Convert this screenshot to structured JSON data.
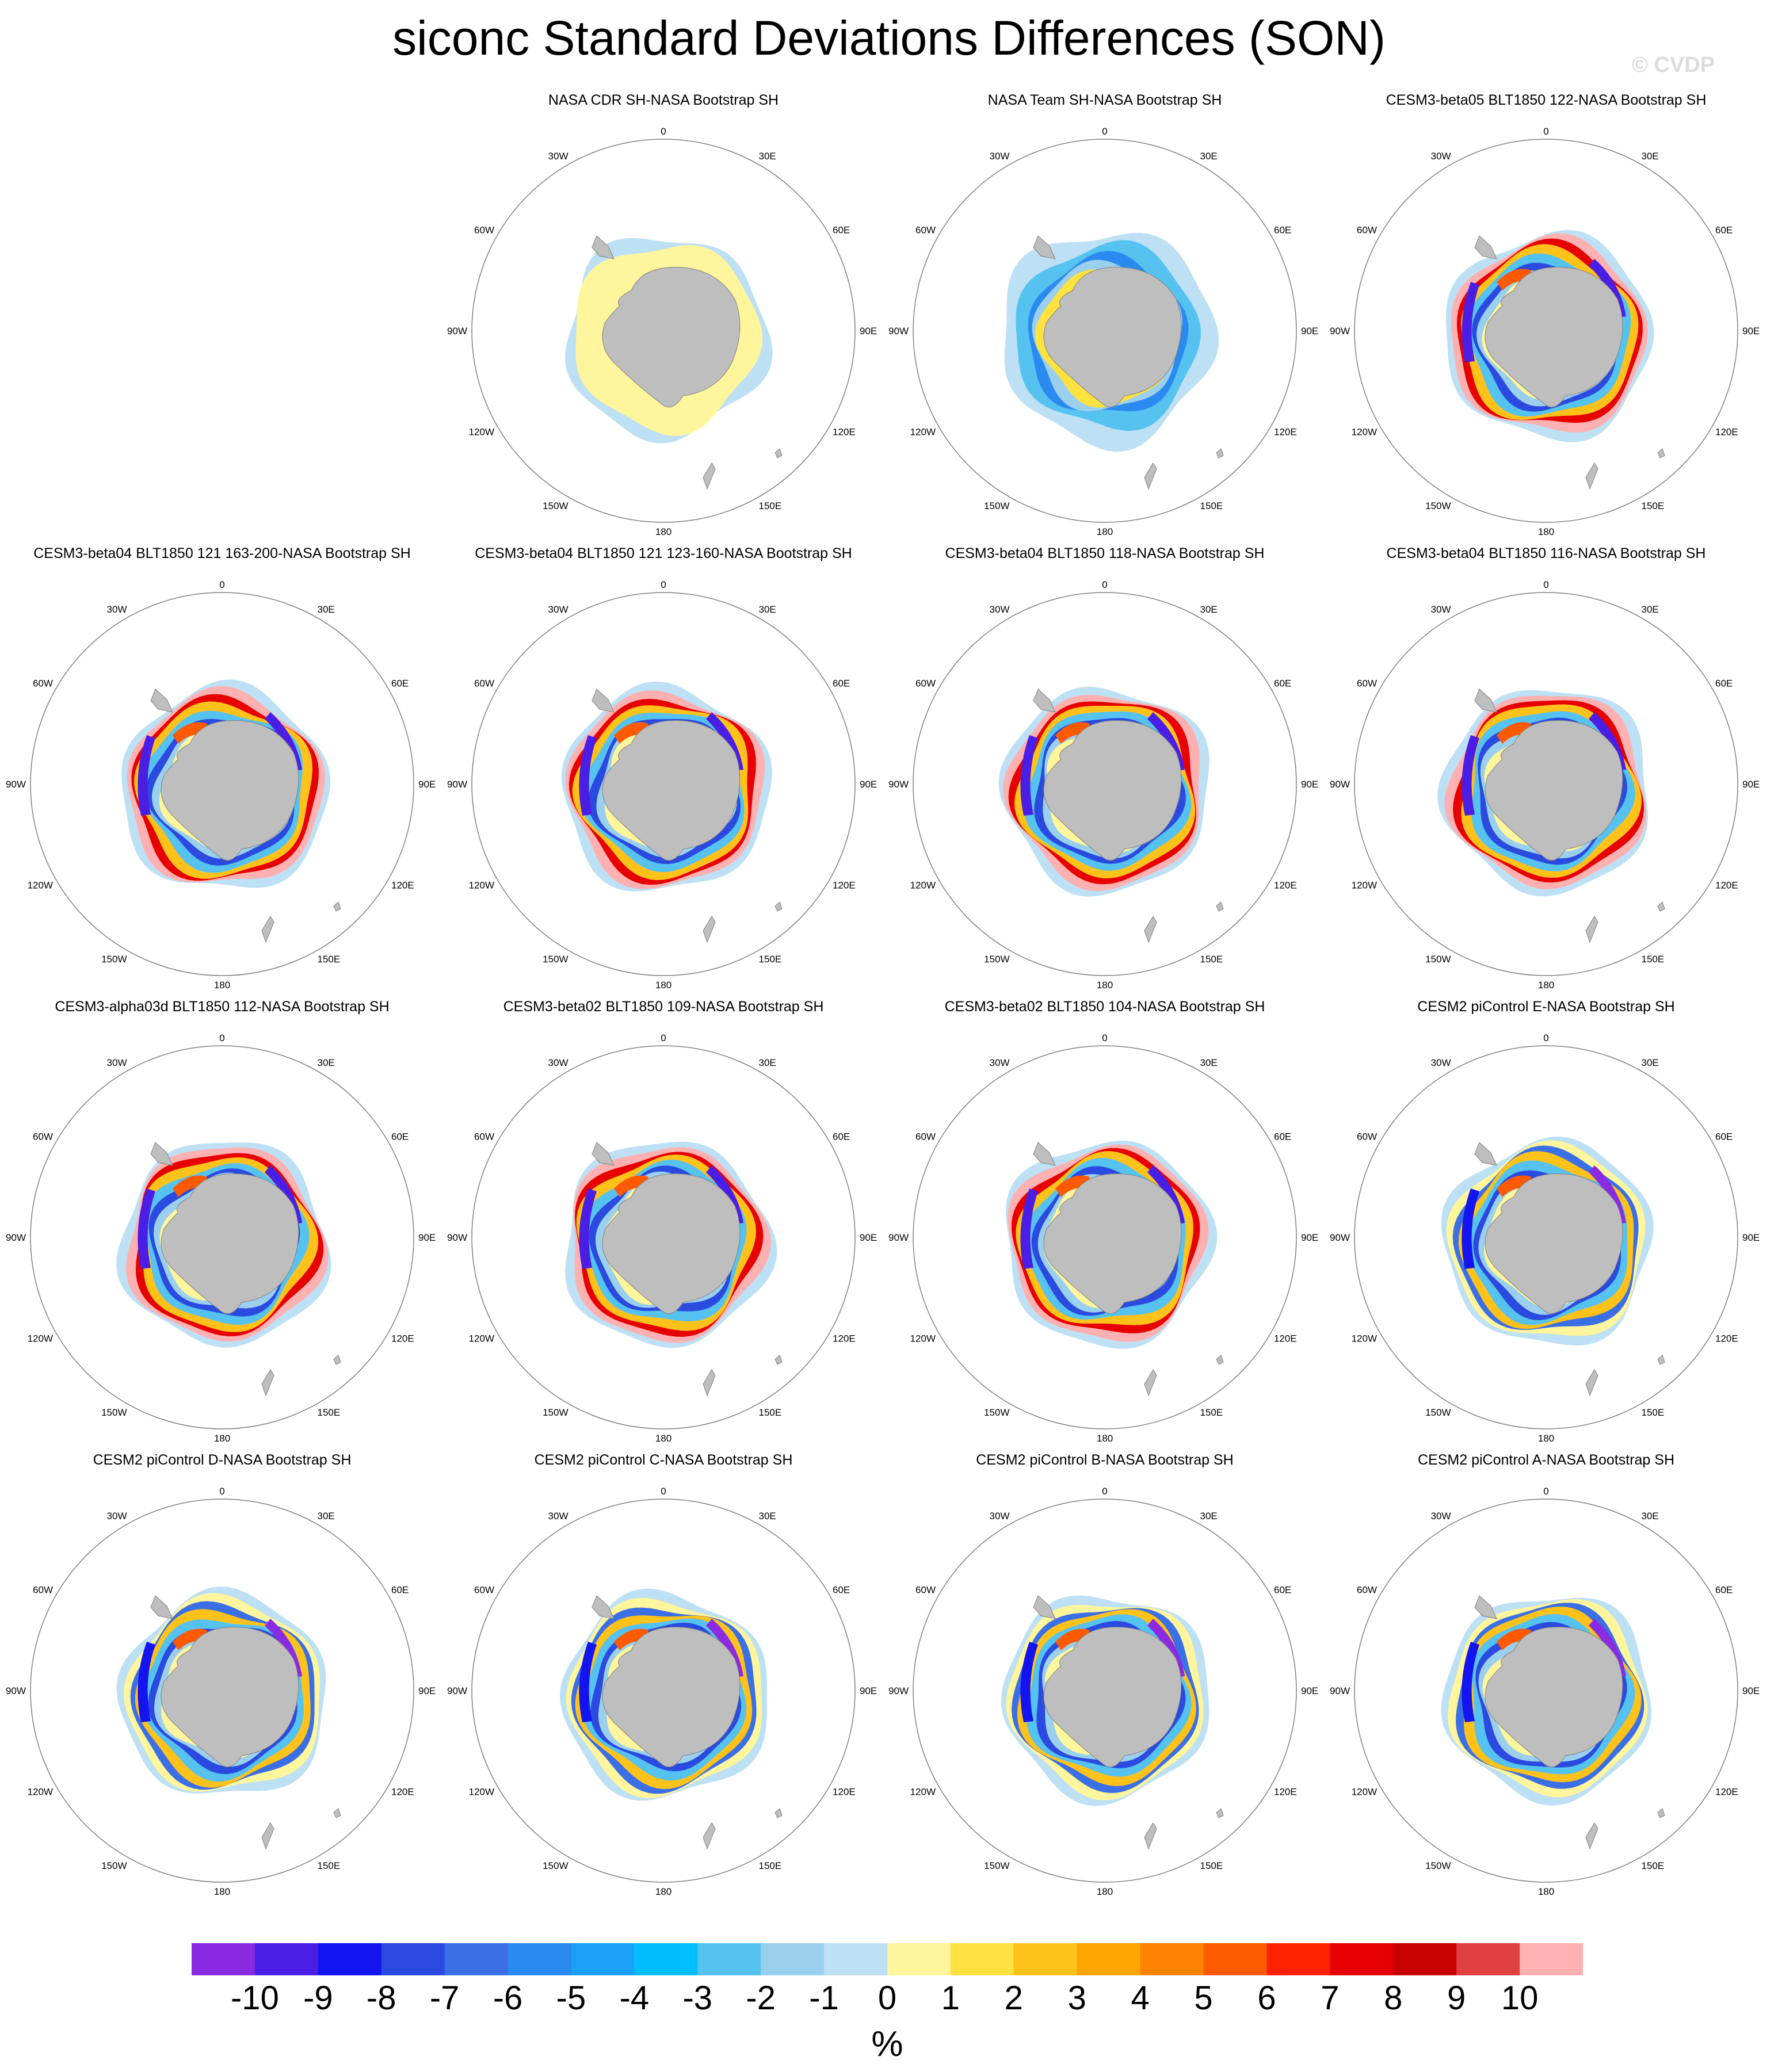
{
  "title": "siconc Standard Deviations Differences (SON)",
  "credit": "© CVDP",
  "map_labels": {
    "top": "0",
    "upper_left": "30W",
    "upper_right": "30E",
    "left_upper": "60W",
    "right_upper": "60E",
    "left": "90W",
    "right": "90E",
    "left_lower": "120W",
    "right_lower": "120E",
    "lower_left": "150W",
    "lower_right": "150E",
    "bottom": "180"
  },
  "panels": [
    {
      "title": "NASA CDR SH-NASA Bootstrap SH",
      "pattern": "cdr"
    },
    {
      "title": "NASA Team SH-NASA Bootstrap SH",
      "pattern": "team"
    },
    {
      "title": "CESM3-beta05 BLT1850 122-NASA Bootstrap SH",
      "pattern": "beta"
    },
    {
      "title": "CESM3-beta04 BLT1850 121 163-200-NASA Bootstrap SH",
      "pattern": "beta"
    },
    {
      "title": "CESM3-beta04 BLT1850 121 123-160-NASA Bootstrap SH",
      "pattern": "beta"
    },
    {
      "title": "CESM3-beta04 BLT1850 118-NASA Bootstrap SH",
      "pattern": "beta"
    },
    {
      "title": "CESM3-beta04 BLT1850 116-NASA Bootstrap SH",
      "pattern": "beta"
    },
    {
      "title": "CESM3-alpha03d BLT1850 112-NASA Bootstrap SH",
      "pattern": "beta"
    },
    {
      "title": "CESM3-beta02 BLT1850 109-NASA Bootstrap SH",
      "pattern": "beta"
    },
    {
      "title": "CESM3-beta02 BLT1850 104-NASA Bootstrap SH",
      "pattern": "beta"
    },
    {
      "title": "CESM2 piControl E-NASA Bootstrap SH",
      "pattern": "cesm2"
    },
    {
      "title": "CESM2 piControl D-NASA Bootstrap SH",
      "pattern": "cesm2"
    },
    {
      "title": "CESM2 piControl C-NASA Bootstrap SH",
      "pattern": "cesm2"
    },
    {
      "title": "CESM2 piControl B-NASA Bootstrap SH",
      "pattern": "cesm2"
    },
    {
      "title": "CESM2 piControl A-NASA Bootstrap SH",
      "pattern": "cesm2"
    }
  ],
  "colorbar": {
    "units": "%",
    "tick_labels": [
      "-10",
      "-9",
      "-8",
      "-7",
      "-6",
      "-5",
      "-4",
      "-3",
      "-2",
      "-1",
      "0",
      "1",
      "2",
      "3",
      "4",
      "5",
      "6",
      "7",
      "8",
      "9",
      "10"
    ],
    "colors": [
      "#8a2be2",
      "#4b1ee6",
      "#1414f0",
      "#2a4ae0",
      "#3a6fe6",
      "#2a8af0",
      "#1aa0f5",
      "#00bfff",
      "#55c2f0",
      "#9ad0ee",
      "#bde0f5",
      "#fff59d",
      "#ffe13f",
      "#ffc21a",
      "#ffa500",
      "#ff8200",
      "#ff5a00",
      "#ff2200",
      "#e60000",
      "#c80000",
      "#e04040",
      "#ffb0b0"
    ]
  }
}
